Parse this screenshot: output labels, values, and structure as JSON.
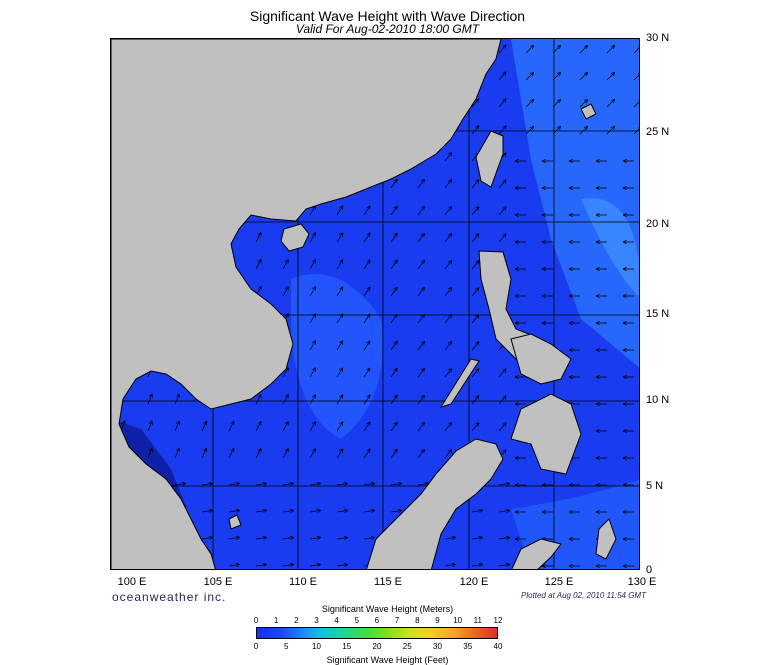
{
  "title": "Significant Wave Height with Wave Direction",
  "subtitle": "Valid For Aug-02-2010 18:00 GMT",
  "lat_labels": [
    "30 N",
    "25 N",
    "20 N",
    "15 N",
    "10 N",
    "5 N",
    "0"
  ],
  "lon_labels": [
    "100 E",
    "105 E",
    "110 E",
    "115 E",
    "120 E",
    "125 E",
    "130 E"
  ],
  "brand": "oceanweather inc.",
  "plotted": "Plotted at Aug 02, 2010 11:54 GMT",
  "colorbar": {
    "title_meters": "Significant Wave Height (Meters)",
    "ticks_meters": [
      "0",
      "1",
      "2",
      "3",
      "4",
      "5",
      "6",
      "7",
      "8",
      "9",
      "10",
      "11",
      "12"
    ],
    "ticks_feet": [
      "0",
      "5",
      "10",
      "15",
      "20",
      "25",
      "30",
      "35",
      "40"
    ],
    "title_feet": "Significant Wave Height (Feet)"
  },
  "colors": {
    "land": "#c0c0c0",
    "sea_low": "#1a3cff",
    "sea_mid": "#1f5cff",
    "sea_high": "#2a80ff",
    "arrow": "#000000"
  }
}
